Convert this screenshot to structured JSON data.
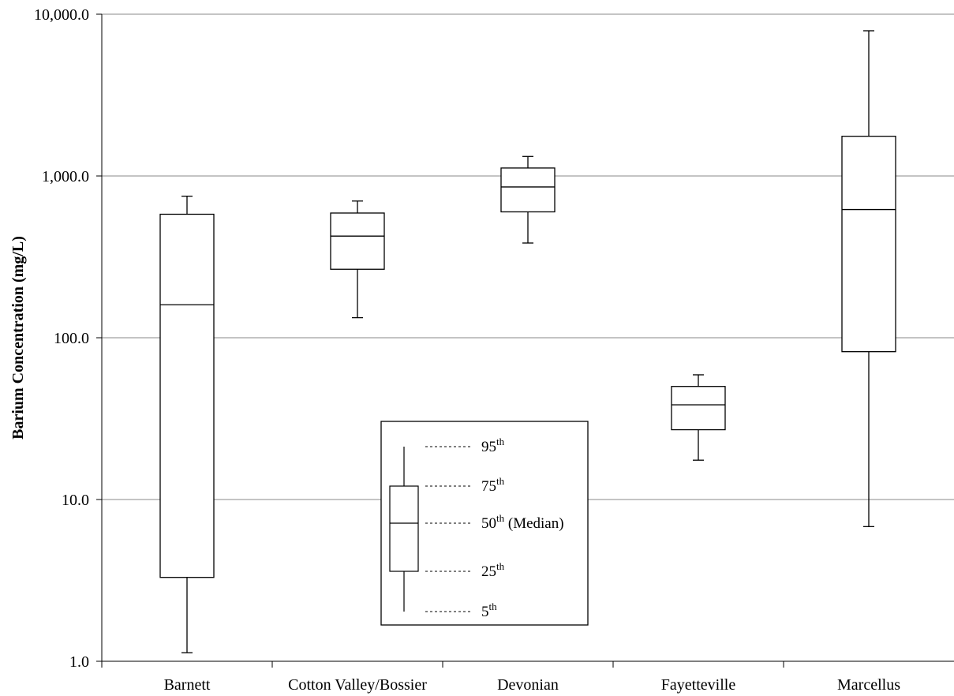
{
  "chart_data": {
    "type": "box",
    "ylabel": "Barium Concentration (mg/L)",
    "xlabel": "",
    "title": "",
    "yscale": "log",
    "ylim": [
      1,
      10000
    ],
    "yticks": [
      {
        "value": 1,
        "label": "1.0"
      },
      {
        "value": 10,
        "label": "10.0"
      },
      {
        "value": 100,
        "label": "100.0"
      },
      {
        "value": 1000,
        "label": "1,000.0"
      },
      {
        "value": 10000,
        "label": "10,000.0"
      }
    ],
    "grid": "horizontal",
    "categories": [
      "Barnett",
      "Cotton Valley/Bossier",
      "Devonian",
      "Fayetteville",
      "Marcellus"
    ],
    "boxes": [
      {
        "category": "Barnett",
        "p5": 1.13,
        "p25": 3.3,
        "p50": 160,
        "p75": 580,
        "p95": 750
      },
      {
        "category": "Cotton Valley/Bossier",
        "p5": 133,
        "p25": 265,
        "p50": 425,
        "p75": 590,
        "p95": 700
      },
      {
        "category": "Devonian",
        "p5": 385,
        "p25": 600,
        "p50": 855,
        "p75": 1120,
        "p95": 1320
      },
      {
        "category": "Fayetteville",
        "p5": 17.5,
        "p25": 27,
        "p50": 38.5,
        "p75": 50,
        "p95": 59
      },
      {
        "category": "Marcellus",
        "p5": 6.8,
        "p25": 82,
        "p50": 620,
        "p75": 1760,
        "p95": 7900
      }
    ],
    "legend": {
      "position": "center-bottom",
      "items": [
        {
          "key": "p95",
          "text": "95",
          "sup": "th",
          "suffix": ""
        },
        {
          "key": "p75",
          "text": "75",
          "sup": "th",
          "suffix": ""
        },
        {
          "key": "p50",
          "text": "50",
          "sup": "th",
          "suffix": " (Median)"
        },
        {
          "key": "p25",
          "text": "25",
          "sup": "th",
          "suffix": ""
        },
        {
          "key": "p5",
          "text": "5",
          "sup": "th",
          "suffix": ""
        }
      ]
    }
  }
}
